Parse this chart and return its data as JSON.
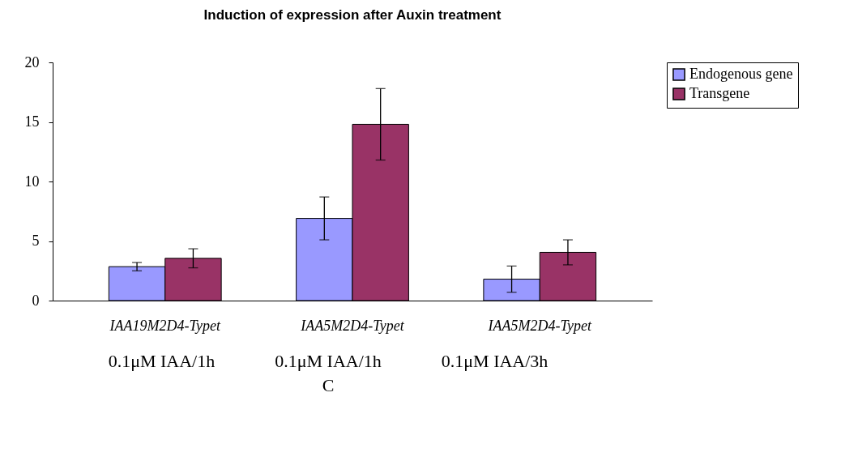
{
  "chart_data": {
    "type": "bar",
    "title": "Induction of expression after Auxin treatment",
    "categories": [
      "IAA19M2D4-Typet",
      "IAA5M2D4-Typet",
      "IAA5M2D4-Typet"
    ],
    "series": [
      {
        "name": "Endogenous gene",
        "color": "#9999ff",
        "values": [
          2.85,
          6.9,
          1.8
        ],
        "errors": [
          0.35,
          1.8,
          1.1
        ]
      },
      {
        "name": "Transgene",
        "color": "#993366",
        "values": [
          3.55,
          14.8,
          4.05
        ],
        "errors": [
          0.8,
          3.0,
          1.05
        ]
      }
    ],
    "ylim": [
      0,
      20
    ],
    "yticks": [
      0,
      5,
      10,
      15,
      20
    ],
    "grid": false,
    "legend": "right",
    "annotations": [
      "0.1μM IAA/1h",
      "0.1μM IAA/1h",
      "0.1μM IAA/3h",
      "C"
    ]
  }
}
